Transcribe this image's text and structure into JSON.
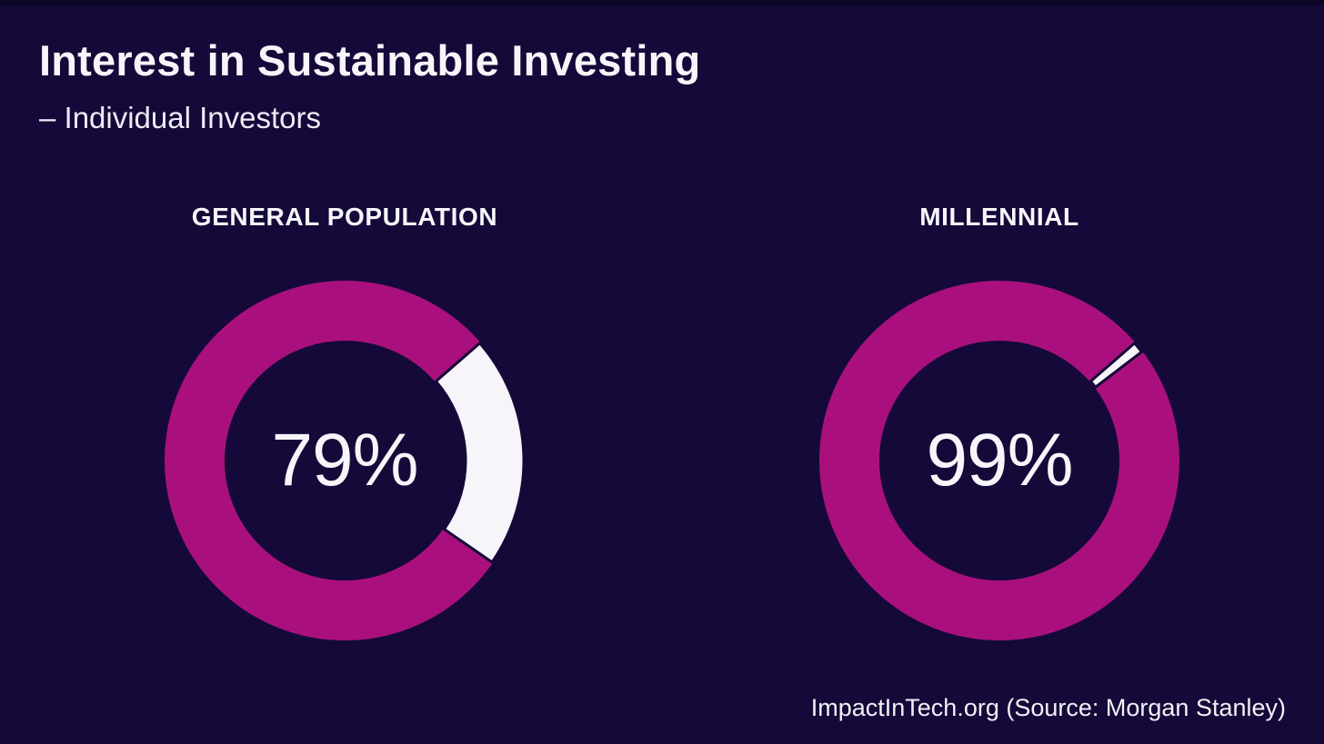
{
  "theme": {
    "background": "#140938",
    "top_edge": "#0c0526",
    "accent_magenta": "#aa107d",
    "segment_white": "#f7f5fa",
    "text_primary": "#f7f5fa"
  },
  "header": {
    "title": "Interest in Sustainable Investing",
    "subtitle": "– Individual Investors"
  },
  "chart_data": [
    {
      "type": "donut",
      "title": "GENERAL POPULATION",
      "value": 79,
      "value_label": "79%",
      "series": [
        {
          "name": "value",
          "value": 79,
          "color": "#aa107d"
        },
        {
          "name": "remainder",
          "value": 21,
          "color": "#f7f5fa"
        }
      ],
      "gap_start_deg": 49,
      "legend_position": "none"
    },
    {
      "type": "donut",
      "title": "MILLENNIAL",
      "value": 99,
      "value_label": "99%",
      "series": [
        {
          "name": "value",
          "value": 99,
          "color": "#aa107d"
        },
        {
          "name": "remainder",
          "value": 1,
          "color": "#f7f5fa"
        }
      ],
      "gap_start_deg": 49,
      "legend_position": "none"
    }
  ],
  "footer": {
    "attribution": "ImpactInTech.org (Source: Morgan Stanley)"
  }
}
